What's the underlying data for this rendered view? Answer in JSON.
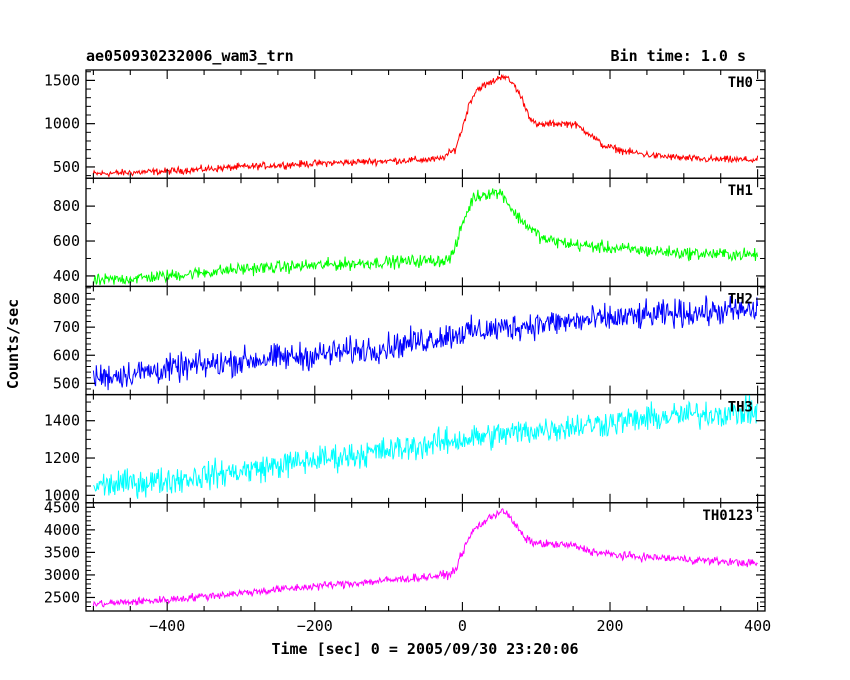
{
  "chart_data": {
    "type": "line",
    "title_left": "ae050930232006_wam3_trn",
    "title_right": "Bin time: 1.0 s",
    "xlabel": "Time [sec] 0 = 2005/09/30 23:20:06",
    "ylabel": "Counts/sec",
    "xlim": [
      -510,
      410
    ],
    "xticks": [
      -400,
      -200,
      0,
      200,
      400
    ],
    "xtick_labels": [
      "−400",
      "−200",
      "0",
      "200",
      "400"
    ],
    "grid": false,
    "panels": [
      {
        "name": "TH0",
        "color": "#ff0000",
        "ylim": [
          370,
          1620
        ],
        "yticks": [
          500,
          1000,
          1500
        ],
        "yminor_step": 100,
        "points": [
          [
            -500,
            420
          ],
          [
            -400,
            450
          ],
          [
            -300,
            500
          ],
          [
            -200,
            540
          ],
          [
            -100,
            570
          ],
          [
            -30,
            590
          ],
          [
            -10,
            700
          ],
          [
            0,
            950
          ],
          [
            10,
            1250
          ],
          [
            20,
            1400
          ],
          [
            40,
            1480
          ],
          [
            55,
            1560
          ],
          [
            70,
            1450
          ],
          [
            80,
            1300
          ],
          [
            90,
            1100
          ],
          [
            100,
            980
          ],
          [
            120,
            1000
          ],
          [
            150,
            1000
          ],
          [
            170,
            900
          ],
          [
            190,
            750
          ],
          [
            220,
            680
          ],
          [
            260,
            630
          ],
          [
            320,
            590
          ],
          [
            400,
            580
          ]
        ],
        "noise": 25
      },
      {
        "name": "TH1",
        "color": "#00ff00",
        "ylim": [
          340,
          960
        ],
        "yticks": [
          400,
          600,
          800
        ],
        "yminor_step": 100,
        "points": [
          [
            -500,
            370
          ],
          [
            -400,
            400
          ],
          [
            -300,
            440
          ],
          [
            -200,
            460
          ],
          [
            -100,
            480
          ],
          [
            -20,
            490
          ],
          [
            -10,
            550
          ],
          [
            0,
            700
          ],
          [
            15,
            850
          ],
          [
            40,
            880
          ],
          [
            55,
            870
          ],
          [
            70,
            760
          ],
          [
            90,
            680
          ],
          [
            110,
            610
          ],
          [
            150,
            580
          ],
          [
            200,
            560
          ],
          [
            300,
            530
          ],
          [
            400,
            520
          ]
        ],
        "noise": 22
      },
      {
        "name": "TH2",
        "color": "#0000ff",
        "ylim": [
          460,
          845
        ],
        "yticks": [
          500,
          600,
          700,
          800
        ],
        "yminor_step": 20,
        "points": [
          [
            -500,
            520
          ],
          [
            -400,
            550
          ],
          [
            -300,
            580
          ],
          [
            -200,
            600
          ],
          [
            -100,
            630
          ],
          [
            0,
            680
          ],
          [
            100,
            710
          ],
          [
            200,
            730
          ],
          [
            300,
            750
          ],
          [
            400,
            760
          ]
        ],
        "noise": 30
      },
      {
        "name": "TH3",
        "color": "#00ffff",
        "ylim": [
          960,
          1540
        ],
        "yticks": [
          1000,
          1200,
          1400
        ],
        "yminor_step": 50,
        "points": [
          [
            -500,
            1050
          ],
          [
            -400,
            1080
          ],
          [
            -300,
            1130
          ],
          [
            -200,
            1190
          ],
          [
            -100,
            1240
          ],
          [
            0,
            1300
          ],
          [
            100,
            1350
          ],
          [
            200,
            1390
          ],
          [
            300,
            1430
          ],
          [
            400,
            1450
          ]
        ],
        "noise": 45
      },
      {
        "name": "TH0123",
        "color": "#ff00ff",
        "ylim": [
          2200,
          4600
        ],
        "yticks": [
          2500,
          3000,
          3500,
          4000,
          4500
        ],
        "yminor_step": 100,
        "points": [
          [
            -500,
            2350
          ],
          [
            -400,
            2450
          ],
          [
            -300,
            2600
          ],
          [
            -200,
            2750
          ],
          [
            -100,
            2880
          ],
          [
            -20,
            3000
          ],
          [
            -10,
            3100
          ],
          [
            0,
            3500
          ],
          [
            15,
            4000
          ],
          [
            40,
            4300
          ],
          [
            55,
            4450
          ],
          [
            70,
            4150
          ],
          [
            85,
            3800
          ],
          [
            100,
            3700
          ],
          [
            150,
            3650
          ],
          [
            180,
            3500
          ],
          [
            220,
            3420
          ],
          [
            300,
            3350
          ],
          [
            400,
            3250
          ]
        ],
        "noise": 55
      }
    ]
  }
}
